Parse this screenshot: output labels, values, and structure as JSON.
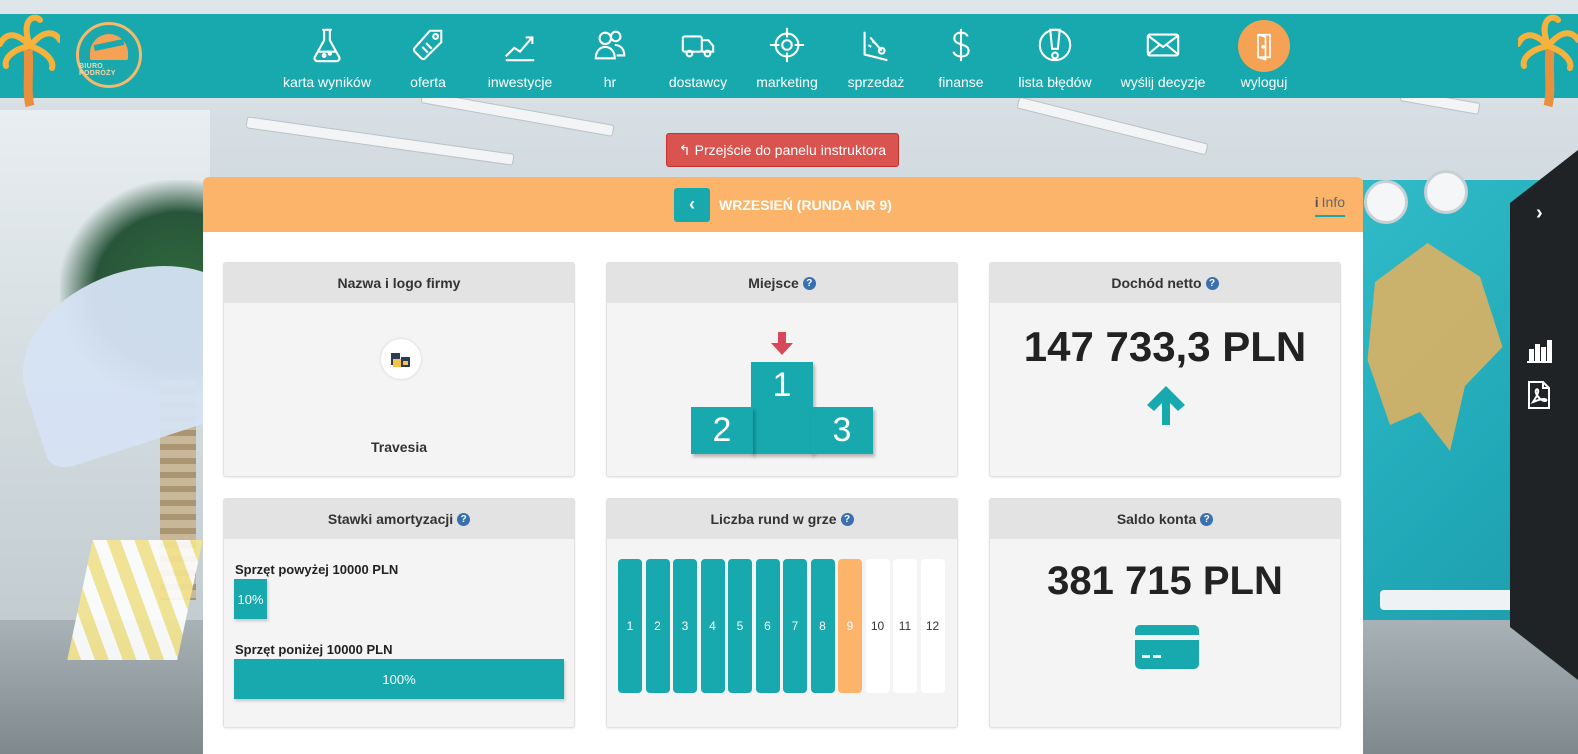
{
  "brand": {
    "logo_text": "BIURO PODRÓŻY"
  },
  "nav": {
    "items": [
      {
        "label": "karta wyników",
        "icon": "flask-icon"
      },
      {
        "label": "oferta",
        "icon": "tag-icon"
      },
      {
        "label": "inwestycje",
        "icon": "growth-chart-icon"
      },
      {
        "label": "hr",
        "icon": "people-icon"
      },
      {
        "label": "dostawcy",
        "icon": "truck-icon"
      },
      {
        "label": "marketing",
        "icon": "target-icon"
      },
      {
        "label": "sprzedaż",
        "icon": "gauge-icon"
      },
      {
        "label": "finanse",
        "icon": "dollar-icon"
      },
      {
        "label": "lista błędów",
        "icon": "warning-icon"
      },
      {
        "label": "wyślij decyzje",
        "icon": "envelope-icon"
      },
      {
        "label": "wyloguj",
        "icon": "logout-door-icon"
      }
    ]
  },
  "instructor_button": {
    "label": "Przejście do panelu instruktora"
  },
  "header": {
    "round_title": "WRZESIEŃ (RUNDA NR 9)",
    "info_label": "Info"
  },
  "cards": {
    "company": {
      "title": "Nazwa i logo firmy",
      "name": "Travesia"
    },
    "place": {
      "title": "Miejsce",
      "first": "1",
      "second": "2",
      "third": "3",
      "trend": "down"
    },
    "net_income": {
      "title": "Dochód netto",
      "value": "147 733,3 PLN",
      "trend": "up"
    },
    "depreciation": {
      "title": "Stawki amortyzacji",
      "rows": [
        {
          "label": "Sprzęt powyżej 10000 PLN",
          "value": "10%",
          "fraction": 0.1
        },
        {
          "label": "Sprzęt poniżej 10000 PLN",
          "value": "100%",
          "fraction": 1.0
        }
      ]
    },
    "rounds": {
      "title": "Liczba rund w grze",
      "labels": [
        "1",
        "2",
        "3",
        "4",
        "5",
        "6",
        "7",
        "8",
        "9",
        "10",
        "11",
        "12"
      ],
      "current": 9
    },
    "balance": {
      "title": "Saldo konta",
      "value": "381 715 PLN"
    }
  },
  "colors": {
    "teal": "#17a9ad",
    "orange": "#fcb46a",
    "red": "#d9534f",
    "dark": "#1f2326"
  }
}
